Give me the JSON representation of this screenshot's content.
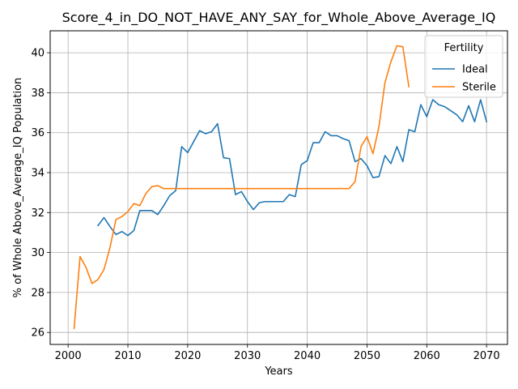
{
  "chart_data": {
    "type": "line",
    "title": "Score_4_in_DO_NOT_HAVE_ANY_SAY_for_Whole_Above_Average_IQ",
    "xlabel": "Years",
    "ylabel": "% of Whole Above_Average_IQ Population",
    "xlim": [
      1997,
      2073.5
    ],
    "ylim": [
      25.4,
      41.1
    ],
    "xticks": [
      2000,
      2010,
      2020,
      2030,
      2040,
      2050,
      2060,
      2070
    ],
    "yticks": [
      26,
      28,
      30,
      32,
      34,
      36,
      38,
      40
    ],
    "grid": true,
    "legend": {
      "title": "Fertility",
      "placement": "top-right"
    },
    "series": [
      {
        "name": "Ideal",
        "color": "#1f77b4",
        "x": [
          2005,
          2006,
          2007,
          2008,
          2009,
          2010,
          2011,
          2012,
          2013,
          2014,
          2015,
          2016,
          2017,
          2018,
          2019,
          2020,
          2021,
          2022,
          2023,
          2024,
          2025,
          2026,
          2027,
          2028,
          2029,
          2030,
          2031,
          2032,
          2033,
          2034,
          2035,
          2036,
          2037,
          2038,
          2039,
          2040,
          2041,
          2042,
          2043,
          2044,
          2045,
          2046,
          2047,
          2048,
          2049,
          2050,
          2051,
          2052,
          2053,
          2054,
          2055,
          2056,
          2057,
          2058,
          2059,
          2060,
          2061,
          2062,
          2063,
          2064,
          2065,
          2066,
          2067,
          2068,
          2069,
          2070
        ],
        "y": [
          31.35,
          31.75,
          31.3,
          30.9,
          31.05,
          30.85,
          31.1,
          32.1,
          32.1,
          32.1,
          31.9,
          32.35,
          32.85,
          33.1,
          35.3,
          35.0,
          35.55,
          36.1,
          35.95,
          36.05,
          36.45,
          34.75,
          34.7,
          32.9,
          33.05,
          32.55,
          32.15,
          32.5,
          32.55,
          32.55,
          32.55,
          32.55,
          32.9,
          32.8,
          34.4,
          34.6,
          35.5,
          35.5,
          36.05,
          35.85,
          35.85,
          35.7,
          35.6,
          34.55,
          34.7,
          34.35,
          33.75,
          33.8,
          34.85,
          34.45,
          35.3,
          34.55,
          36.15,
          36.05,
          37.4,
          36.8,
          37.65,
          37.4,
          37.3,
          37.1,
          36.9,
          36.55,
          37.35,
          36.55,
          37.65,
          36.55
        ]
      },
      {
        "name": "Sterile",
        "color": "#ff7f0e",
        "x": [
          2001,
          2002,
          2003,
          2004,
          2005,
          2006,
          2007,
          2008,
          2009,
          2010,
          2011,
          2012,
          2013,
          2014,
          2015,
          2016,
          2017,
          2018,
          2019,
          2020,
          2021,
          2022,
          2023,
          2024,
          2025,
          2026,
          2027,
          2028,
          2029,
          2030,
          2031,
          2032,
          2033,
          2034,
          2035,
          2036,
          2037,
          2038,
          2039,
          2040,
          2041,
          2042,
          2043,
          2044,
          2045,
          2046,
          2047,
          2048,
          2049,
          2050,
          2051,
          2052,
          2053,
          2054,
          2055,
          2056,
          2057
        ],
        "y": [
          26.2,
          29.8,
          29.25,
          28.45,
          28.65,
          29.15,
          30.25,
          31.65,
          31.8,
          32.05,
          32.45,
          32.35,
          32.95,
          33.3,
          33.35,
          33.2,
          33.2,
          33.2,
          33.2,
          33.2,
          33.2,
          33.2,
          33.2,
          33.2,
          33.2,
          33.2,
          33.2,
          33.2,
          33.2,
          33.2,
          33.2,
          33.2,
          33.2,
          33.2,
          33.2,
          33.2,
          33.2,
          33.2,
          33.2,
          33.2,
          33.2,
          33.2,
          33.2,
          33.2,
          33.2,
          33.2,
          33.2,
          33.55,
          35.3,
          35.8,
          34.95,
          36.3,
          38.5,
          39.55,
          40.35,
          40.3,
          38.3
        ]
      }
    ]
  }
}
